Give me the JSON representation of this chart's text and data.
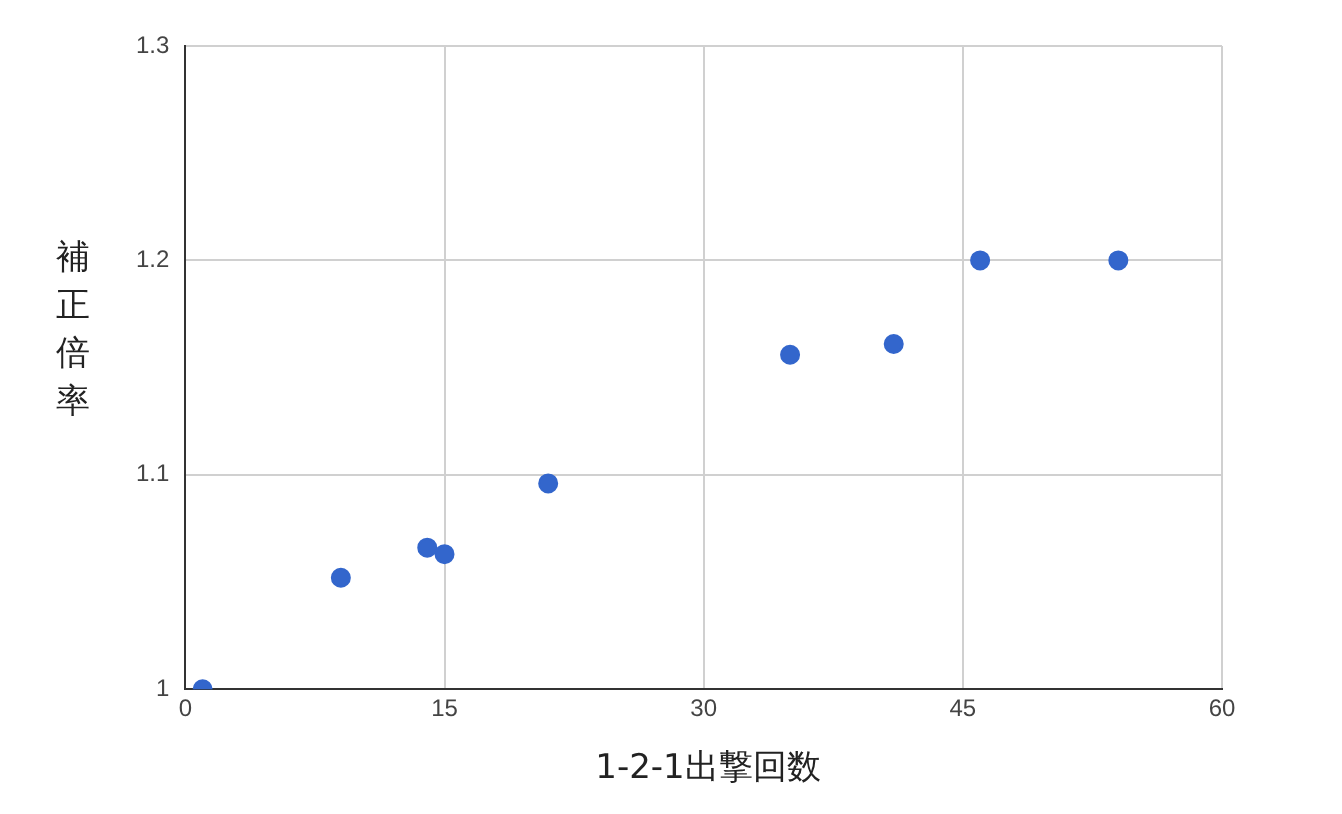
{
  "chart_data": {
    "type": "scatter",
    "xlabel": "1-2-1出撃回数",
    "ylabel": "補正倍率",
    "x": [
      1,
      9,
      14,
      15,
      21,
      35,
      41,
      46,
      54
    ],
    "series": [
      {
        "color": "#3366cc",
        "values": [
          1.0,
          1.052,
          1.066,
          1.063,
          1.096,
          1.156,
          1.161,
          1.2,
          1.2
        ]
      }
    ],
    "xlim": [
      0,
      60
    ],
    "xticks": [
      0,
      15,
      30,
      45,
      60
    ],
    "ylim": [
      1,
      1.3
    ],
    "yticks": [
      1,
      1.1,
      1.2,
      1.3
    ],
    "grid": true,
    "legend": false,
    "marker": "circle"
  }
}
